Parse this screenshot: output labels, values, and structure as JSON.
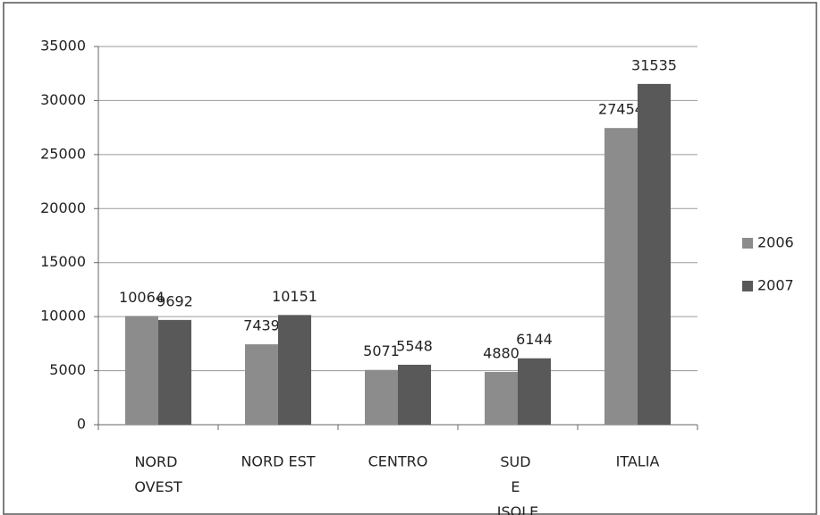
{
  "chart_data": {
    "type": "bar",
    "categories": [
      "NORD OVEST",
      "NORD EST",
      "CENTRO",
      "SUD E ISOLE",
      "ITALIA"
    ],
    "series": [
      {
        "name": "2006",
        "color": "#8c8c8c",
        "values": [
          10064,
          7439,
          5071,
          4880,
          27454
        ]
      },
      {
        "name": "2007",
        "color": "#595959",
        "values": [
          9692,
          10151,
          5548,
          6144,
          31535
        ]
      }
    ],
    "ylim": [
      0,
      35000
    ],
    "yticks": [
      0,
      5000,
      10000,
      15000,
      20000,
      25000,
      30000,
      35000
    ],
    "grid": true,
    "legend": "right"
  }
}
